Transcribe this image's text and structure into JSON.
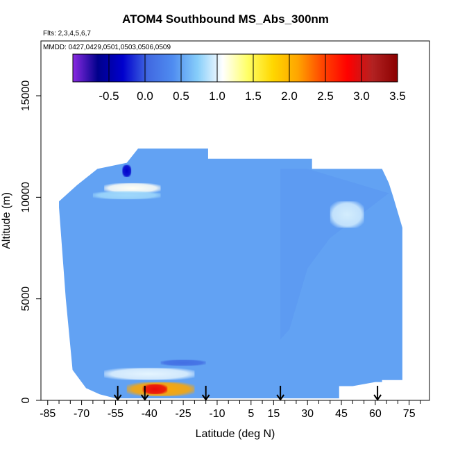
{
  "chart_data": {
    "type": "heatmap",
    "title": "ATOM4 Southbound MS_Abs_300nm",
    "flights_label": "Flts: 2,3,4,5,6,7",
    "dates_label": "MMDD: 0427,0429,0501,0503,0506,0509",
    "xlabel": "Latitude (deg N)",
    "ylabel": "Altitude (m)",
    "xlim": [
      -88,
      84
    ],
    "ylim": [
      0,
      17700
    ],
    "x_ticks": [
      -85,
      -70,
      -55,
      -40,
      -25,
      -10,
      5,
      15,
      30,
      45,
      60,
      75
    ],
    "y_ticks": [
      0,
      5000,
      10000,
      15000
    ],
    "colorbar": {
      "range": [
        -1,
        3.5
      ],
      "ticks": [
        "-0.5",
        "0.0",
        "0.5",
        "1.0",
        "1.5",
        "2.0",
        "2.5",
        "3.0",
        "3.5"
      ],
      "tick_values": [
        -0.5,
        0,
        0.5,
        1.0,
        1.5,
        2.0,
        2.5,
        3.0,
        3.5
      ],
      "colors": [
        "#8a2be2",
        "#00008b",
        "#0000cd",
        "#4169e1",
        "#4f8cf0",
        "#87cefa",
        "#ffffff",
        "#ffff66",
        "#ffd700",
        "#ffa500",
        "#ff4500",
        "#ff0000",
        "#b22222",
        "#8b0000"
      ]
    },
    "background_value": 0.5,
    "features": [
      {
        "name": "upper-left dark band",
        "lat": [
          -52,
          -48
        ],
        "alt": [
          11000,
          11600
        ],
        "value": -0.3
      },
      {
        "name": "upper-left bright band",
        "lat": [
          -60,
          -35
        ],
        "alt": [
          10200,
          10700
        ],
        "value": 1.1
      },
      {
        "name": "upper-left light band",
        "lat": [
          -65,
          -35
        ],
        "alt": [
          9900,
          10300
        ],
        "value": 0.8
      },
      {
        "name": "right plume",
        "lat": [
          40,
          55
        ],
        "alt": [
          8500,
          9800
        ],
        "value": 0.95
      },
      {
        "name": "low dark band",
        "lat": [
          -35,
          -15
        ],
        "alt": [
          1700,
          2000
        ],
        "value": 0.1
      },
      {
        "name": "low bright band",
        "lat": [
          -60,
          -20
        ],
        "alt": [
          1000,
          1600
        ],
        "value": 1.0
      },
      {
        "name": "surface pollution layer",
        "lat": [
          -50,
          -20
        ],
        "alt": [
          200,
          900
        ],
        "value": 2.1
      },
      {
        "name": "surface pollution core",
        "lat": [
          -43,
          -32
        ],
        "alt": [
          300,
          800
        ],
        "value": 2.9
      }
    ],
    "profile_arrows_lat": [
      -54,
      -42,
      -15,
      18,
      61
    ]
  }
}
